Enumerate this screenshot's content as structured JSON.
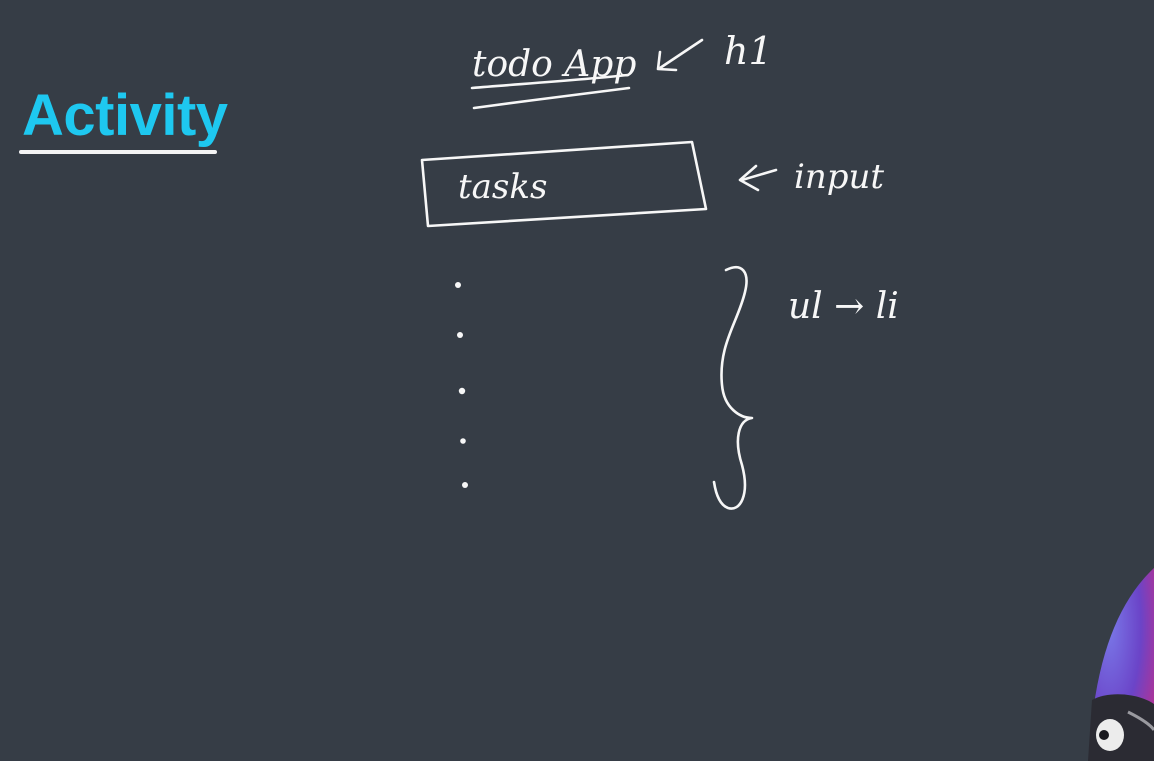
{
  "slide": {
    "heading": "Activity",
    "accent_color": "#1ec8f0",
    "background_color": "#363d46"
  },
  "sketch": {
    "title_text": "todo App",
    "title_tag": "h1",
    "input_text": "tasks",
    "input_tag": "input",
    "list_label": "ul → li",
    "list_items": [
      "",
      "",
      "",
      "",
      ""
    ]
  },
  "webcam": {
    "icon": "webcam-overlay-icon"
  }
}
